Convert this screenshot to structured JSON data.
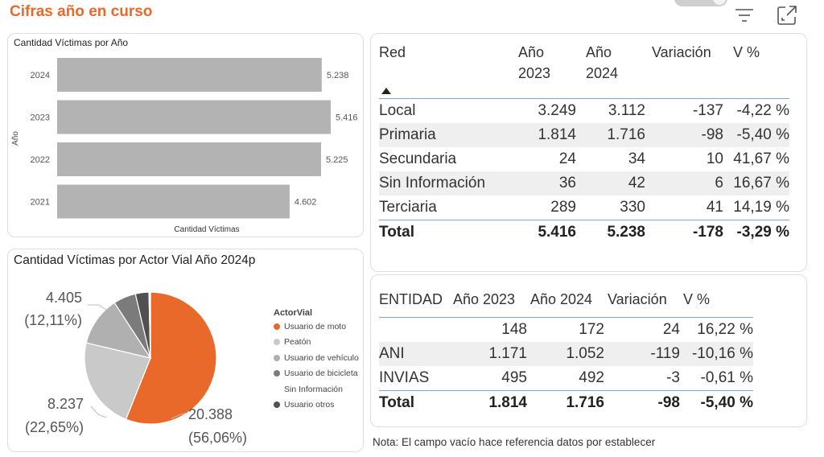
{
  "header": {
    "title": "Cifras año en curso"
  },
  "colors": {
    "accent": "#e8692a",
    "bar": "#b3b3b3"
  },
  "icons": {
    "filter": "filter-icon",
    "focus": "focus-mode-icon"
  },
  "bar_card": {
    "title": "Cantidad Víctimas por Año",
    "xlabel": "Cantidad Víctimas",
    "ylabel": "Año"
  },
  "pie_card": {
    "title": "Cantidad Víctimas por Actor Vial Año 2024p",
    "legend_title": "ActorVial",
    "legend": [
      {
        "label": "Usuario de moto",
        "color": "#e8692a"
      },
      {
        "label": "Peatón",
        "color": "#c9c9c9"
      },
      {
        "label": "Usuario de vehículo",
        "color": "#b0b0b0"
      },
      {
        "label": "Usuario de bicicleta",
        "color": "#7b7b7b"
      },
      {
        "label": "Sin Información",
        "color": ""
      },
      {
        "label": "Usuario otros",
        "color": "#505050"
      }
    ],
    "labels": {
      "moto_value": "20.388",
      "moto_pct": "(56,06%)",
      "peaton_value": "8.237",
      "peaton_pct": "(22,65%)",
      "vehiculo_value": "4.405",
      "vehiculo_pct": "(12,11%)"
    }
  },
  "red_table": {
    "headers": {
      "col1": "Red",
      "col2a": "Año",
      "col2b": "2023",
      "col3a": "Año",
      "col3b": "2024",
      "col4": "Variación",
      "col5": "V %"
    },
    "rows": [
      [
        "Local",
        "3.249",
        "3.112",
        "-137",
        "-4,22 %"
      ],
      [
        "Primaria",
        "1.814",
        "1.716",
        "-98",
        "-5,40 %"
      ],
      [
        "Secundaria",
        "24",
        "34",
        "10",
        "41,67 %"
      ],
      [
        "Sin Información",
        "36",
        "42",
        "6",
        "16,67 %"
      ],
      [
        "Terciaria",
        "289",
        "330",
        "41",
        "14,19 %"
      ]
    ],
    "total": [
      "Total",
      "5.416",
      "5.238",
      "-178",
      "-3,29 %"
    ]
  },
  "entidad_table": {
    "headers": {
      "col1": "ENTIDAD",
      "col2": "Año 2023",
      "col3": "Año 2024",
      "col4": "Variación",
      "col5": "V %"
    },
    "rows": [
      [
        "",
        "148",
        "172",
        "24",
        "16,22 %"
      ],
      [
        "ANI",
        "1.171",
        "1.052",
        "-119",
        "-10,16 %"
      ],
      [
        "INVIAS",
        "495",
        "492",
        "-3",
        "-0,61 %"
      ]
    ],
    "total": [
      "Total",
      "1.814",
      "1.716",
      "-98",
      "-5,40 %"
    ]
  },
  "note": "Nota: El campo vacío hace referencia datos por establecer",
  "chart_data": [
    {
      "type": "bar",
      "orientation": "horizontal",
      "title": "Cantidad Víctimas por Año",
      "xlabel": "Cantidad Víctimas",
      "ylabel": "Año",
      "categories": [
        "2024",
        "2023",
        "2022",
        "2021"
      ],
      "values": [
        5238,
        5416,
        5225,
        4602
      ],
      "value_labels": [
        "5.238",
        "5.416",
        "5.225",
        "4.602"
      ],
      "xlim": [
        0,
        5416
      ],
      "grid": false
    },
    {
      "type": "pie",
      "title": "Cantidad Víctimas por Actor Vial Año 2024p",
      "legend_title": "ActorVial",
      "legend_position": "right",
      "slices": [
        {
          "label": "Usuario de moto",
          "percent": 56.06,
          "color": "#e8692a"
        },
        {
          "label": "Peatón",
          "percent": 22.65,
          "color": "#c9c9c9"
        },
        {
          "label": "Usuario de vehículo",
          "percent": 12.11,
          "color": "#b0b0b0"
        },
        {
          "label": "Usuario de bicicleta",
          "percent": 5.5,
          "color": "#7b7b7b"
        },
        {
          "label": "Usuario otros",
          "percent": 3.3,
          "color": "#505050"
        },
        {
          "label": "Sin Información",
          "percent": 0.38,
          "color": "#ffffff"
        }
      ]
    }
  ]
}
